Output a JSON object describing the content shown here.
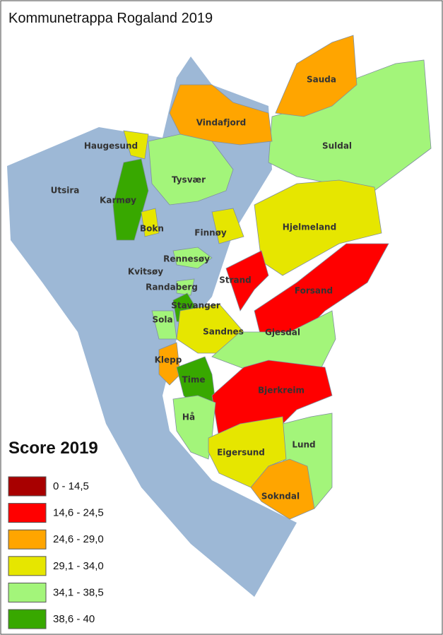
{
  "title": "Kommunetrappa Rogaland 2019",
  "legend": {
    "title": "Score 2019",
    "items": [
      {
        "label": "0 - 14,5",
        "color": "#a80000"
      },
      {
        "label": "14,6 - 24,5",
        "color": "#ff0000"
      },
      {
        "label": "24,6 - 29,0",
        "color": "#ffa500"
      },
      {
        "label": "29,1 - 34,0",
        "color": "#e6e600"
      },
      {
        "label": "34,1 - 38,5",
        "color": "#a3f57a"
      },
      {
        "label": "38,6 - 40",
        "color": "#38a800"
      }
    ]
  },
  "municipalities": [
    "Sauda",
    "Vindafjord",
    "Haugesund",
    "Suldal",
    "Utsira",
    "Tysvær",
    "Karmøy",
    "Bokn",
    "Finnøy",
    "Hjelmeland",
    "Rennesøy",
    "Kvitsøy",
    "Strand",
    "Randaberg",
    "Forsand",
    "Stavanger",
    "Sola",
    "Sandnes",
    "Gjesdal",
    "Klepp",
    "Time",
    "Bjerkreim",
    "Hå",
    "Lund",
    "Eigersund",
    "Sokndal"
  ]
}
